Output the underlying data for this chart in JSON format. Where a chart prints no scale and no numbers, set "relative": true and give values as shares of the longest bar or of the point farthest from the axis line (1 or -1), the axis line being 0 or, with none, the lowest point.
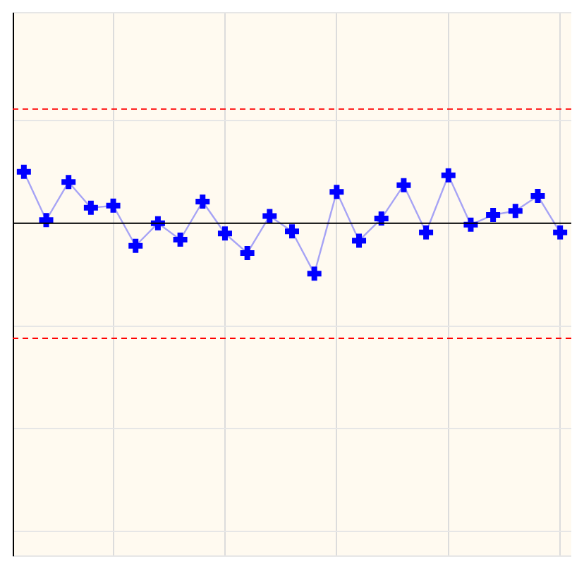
{
  "chart_data": {
    "type": "line",
    "relative": true,
    "categories": [
      null,
      null,
      null,
      null,
      null,
      null,
      null,
      null,
      null,
      null,
      null,
      null,
      null,
      null,
      null,
      null,
      null,
      null,
      null,
      null,
      null,
      null,
      null,
      null,
      null
    ],
    "series": [
      {
        "color": "#0000ff",
        "values": [
          1,
          0.06,
          0.8,
          0.3,
          0.34,
          -0.44,
          0,
          -0.32,
          0.42,
          -0.2,
          -0.58,
          0.14,
          -0.16,
          -0.98,
          0.61,
          -0.34,
          0.09,
          0.74,
          -0.18,
          0.93,
          -0.03,
          0.16,
          0.24,
          0.53,
          -0.18
        ]
      }
    ],
    "ref_lines": [
      {
        "axis": "y",
        "value": 2.22,
        "color": "#ff0000",
        "line_style": "dashed"
      },
      {
        "axis": "y",
        "value": -2.24,
        "color": "#ff0000",
        "line_style": "dashed"
      }
    ],
    "grid": true,
    "legend": false,
    "marker": "cross",
    "line_style": "solid"
  }
}
